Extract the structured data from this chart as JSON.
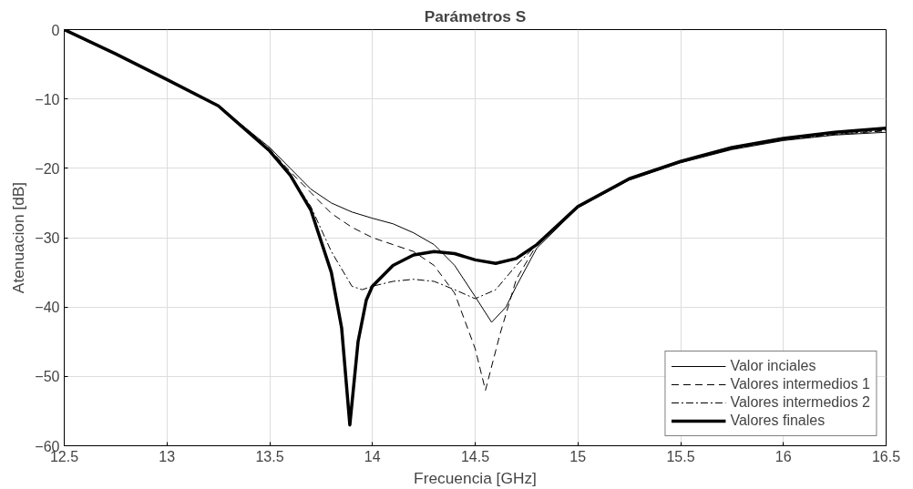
{
  "chart_data": {
    "type": "line",
    "title": "Parámetros S",
    "xlabel": "Frecuencia [GHz]",
    "ylabel": "Atenuacion [dB]",
    "xlim": [
      12.5,
      16.5
    ],
    "ylim": [
      -60,
      0
    ],
    "xticks": [
      12.5,
      13,
      13.5,
      14,
      14.5,
      15,
      15.5,
      16,
      16.5
    ],
    "yticks": [
      -60,
      -50,
      -40,
      -30,
      -20,
      -10,
      0
    ],
    "grid": true,
    "legend": "bottom right",
    "marker": "none",
    "series": [
      {
        "name": "Valor inciales",
        "color": "#000000",
        "line_style": "solid",
        "x": [
          12.5,
          12.75,
          13,
          13.25,
          13.5,
          13.6,
          13.7,
          13.8,
          13.9,
          14.0,
          14.1,
          14.2,
          14.3,
          14.4,
          14.5,
          14.58,
          14.65,
          14.7,
          14.8,
          15,
          15.25,
          15.5,
          15.75,
          16,
          16.25,
          16.5
        ],
        "values": [
          0,
          -3.5,
          -7.2,
          -11,
          -17,
          -20,
          -23,
          -25,
          -26.3,
          -27.2,
          -28,
          -29.3,
          -31,
          -34,
          -38.5,
          -42.2,
          -40,
          -37,
          -31.5,
          -25.7,
          -21.7,
          -19.2,
          -17.3,
          -16,
          -15.2,
          -14.8
        ]
      },
      {
        "name": "Valores intermedios 1",
        "color": "#000000",
        "line_style": "dashed",
        "x": [
          12.5,
          12.75,
          13,
          13.25,
          13.5,
          13.6,
          13.7,
          13.8,
          13.9,
          14.0,
          14.1,
          14.2,
          14.3,
          14.4,
          14.5,
          14.55,
          14.62,
          14.7,
          14.8,
          15,
          15.25,
          15.5,
          15.75,
          16,
          16.25,
          16.5
        ],
        "values": [
          0,
          -3.5,
          -7.2,
          -11,
          -17.2,
          -20.5,
          -23.5,
          -26.5,
          -28.5,
          -30,
          -31,
          -32,
          -34,
          -38,
          -46,
          -52,
          -44,
          -36,
          -31,
          -25.6,
          -21.6,
          -19.1,
          -17.2,
          -15.9,
          -15.1,
          -14.6
        ]
      },
      {
        "name": "Valores intermedios 2",
        "color": "#000000",
        "line_style": "dashdot",
        "x": [
          12.5,
          12.75,
          13,
          13.25,
          13.5,
          13.6,
          13.7,
          13.8,
          13.9,
          13.95,
          14.0,
          14.1,
          14.2,
          14.3,
          14.4,
          14.5,
          14.6,
          14.7,
          14.8,
          15,
          15.25,
          15.5,
          15.75,
          16,
          16.25,
          16.5
        ],
        "values": [
          0,
          -3.5,
          -7.2,
          -11,
          -17.5,
          -21,
          -25.5,
          -32,
          -37,
          -37.5,
          -37,
          -36.3,
          -36,
          -36.3,
          -37.5,
          -38.8,
          -37.5,
          -34,
          -31,
          -25.6,
          -21.6,
          -19.1,
          -17.2,
          -15.9,
          -15.1,
          -14.5
        ]
      },
      {
        "name": "Valores finales",
        "color": "#000000",
        "line_style": "solid",
        "x": [
          12.5,
          12.75,
          13,
          13.25,
          13.5,
          13.6,
          13.7,
          13.8,
          13.85,
          13.89,
          13.93,
          13.97,
          14.0,
          14.1,
          14.2,
          14.3,
          14.4,
          14.5,
          14.6,
          14.7,
          14.8,
          15,
          15.25,
          15.5,
          15.75,
          16,
          16.25,
          16.5
        ],
        "values": [
          0,
          -3.5,
          -7.2,
          -11,
          -17.5,
          -21,
          -26,
          -35,
          -43,
          -57,
          -45,
          -39,
          -37,
          -34,
          -32.5,
          -32,
          -32.3,
          -33.2,
          -33.7,
          -33,
          -31,
          -25.5,
          -21.5,
          -19,
          -17,
          -15.7,
          -14.8,
          -14.2
        ]
      }
    ]
  }
}
